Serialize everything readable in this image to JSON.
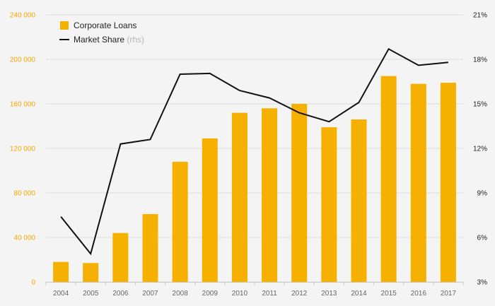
{
  "chart_data": {
    "type": "bar",
    "categories": [
      "2004",
      "2005",
      "2006",
      "2007",
      "2008",
      "2009",
      "2010",
      "2011",
      "2012",
      "2013",
      "2014",
      "2015",
      "2016",
      "2017"
    ],
    "series": [
      {
        "name": "Corporate Loans",
        "type": "bar",
        "axis": "left",
        "values": [
          18000,
          17000,
          44000,
          61000,
          108000,
          129000,
          152000,
          156000,
          160000,
          139000,
          146000,
          185000,
          178000,
          179000
        ]
      },
      {
        "name": "Market Share",
        "name_suffix": "(rhs)",
        "type": "line",
        "axis": "right",
        "values": [
          7.4,
          4.9,
          12.3,
          12.6,
          17.0,
          17.05,
          15.9,
          15.4,
          14.4,
          13.8,
          15.1,
          18.7,
          17.6,
          17.8
        ]
      }
    ],
    "y_left": {
      "range": [
        0,
        240000
      ],
      "ticks": [
        0,
        40000,
        80000,
        120000,
        160000,
        200000,
        240000
      ],
      "tick_labels": [
        "0",
        "40 000",
        "80 000",
        "120 000",
        "160 000",
        "200 000",
        "240 000"
      ]
    },
    "y_right": {
      "range": [
        3,
        21
      ],
      "ticks": [
        3,
        6,
        9,
        12,
        15,
        18,
        21
      ],
      "tick_labels": [
        "3%",
        "6%",
        "9%",
        "12%",
        "15%",
        "18%",
        "21%"
      ]
    },
    "legend_position": "top-left",
    "grid": "horizontal",
    "colors": {
      "bar": "#f5b000",
      "line": "#111111",
      "left_axis_text": "#f5a800",
      "grid": "#dddddd",
      "background": "#f4f4f4"
    },
    "title": "",
    "xlabel": "",
    "ylabel": ""
  }
}
